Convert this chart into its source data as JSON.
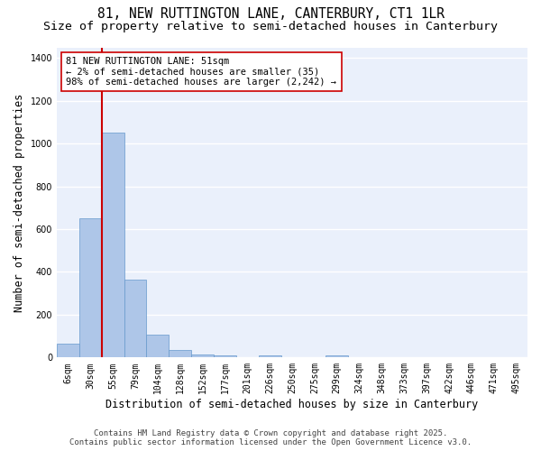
{
  "title_line1": "81, NEW RUTTINGTON LANE, CANTERBURY, CT1 1LR",
  "title_line2": "Size of property relative to semi-detached houses in Canterbury",
  "xlabel": "Distribution of semi-detached houses by size in Canterbury",
  "ylabel": "Number of semi-detached properties",
  "categories": [
    "6sqm",
    "30sqm",
    "55sqm",
    "79sqm",
    "104sqm",
    "128sqm",
    "152sqm",
    "177sqm",
    "201sqm",
    "226sqm",
    "250sqm",
    "275sqm",
    "299sqm",
    "324sqm",
    "348sqm",
    "373sqm",
    "397sqm",
    "422sqm",
    "446sqm",
    "471sqm",
    "495sqm"
  ],
  "values": [
    65,
    650,
    1050,
    365,
    105,
    35,
    15,
    10,
    0,
    10,
    0,
    0,
    10,
    0,
    0,
    0,
    0,
    0,
    0,
    0,
    0
  ],
  "bar_color": "#aec6e8",
  "bar_edge_color": "#6699cc",
  "vline_color": "#cc0000",
  "vline_x": 1.5,
  "annotation_text": "81 NEW RUTTINGTON LANE: 51sqm\n← 2% of semi-detached houses are smaller (35)\n98% of semi-detached houses are larger (2,242) →",
  "ylim": [
    0,
    1450
  ],
  "yticks": [
    0,
    200,
    400,
    600,
    800,
    1000,
    1200,
    1400
  ],
  "bg_color": "#eaf0fb",
  "grid_color": "#ffffff",
  "footer_line1": "Contains HM Land Registry data © Crown copyright and database right 2025.",
  "footer_line2": "Contains public sector information licensed under the Open Government Licence v3.0.",
  "title_fontsize": 10.5,
  "subtitle_fontsize": 9.5,
  "axis_label_fontsize": 8.5,
  "tick_fontsize": 7,
  "annotation_fontsize": 7.5,
  "footer_fontsize": 6.5
}
